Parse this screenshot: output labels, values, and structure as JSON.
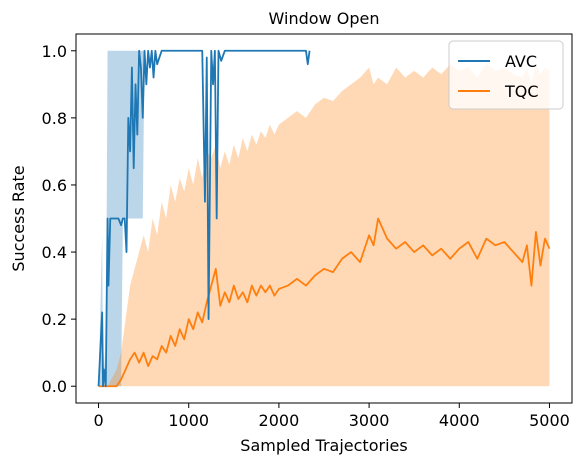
{
  "chart_data": {
    "type": "line",
    "title": "Window Open",
    "xlabel": "Sampled Trajectories",
    "ylabel": "Success Rate",
    "xlim": [
      -250,
      5250
    ],
    "ylim": [
      -0.05,
      1.05
    ],
    "xticks": [
      0,
      1000,
      2000,
      3000,
      4000,
      5000
    ],
    "xtick_labels": [
      "0",
      "1000",
      "2000",
      "3000",
      "4000",
      "5000"
    ],
    "yticks": [
      0.0,
      0.2,
      0.4,
      0.6,
      0.8,
      1.0
    ],
    "ytick_labels": [
      "0.0",
      "0.2",
      "0.4",
      "0.6",
      "0.8",
      "1.0"
    ],
    "grid": false,
    "legend_position": "top-right",
    "series": [
      {
        "name": "AVC",
        "color": "#1f77b4",
        "band_color": "#1f77b4",
        "x": [
          0,
          40,
          50,
          60,
          80,
          100,
          110,
          130,
          150,
          170,
          200,
          220,
          250,
          270,
          290,
          310,
          330,
          350,
          370,
          390,
          410,
          430,
          450,
          470,
          490,
          510,
          530,
          550,
          570,
          590,
          610,
          630,
          650,
          700,
          750,
          800,
          850,
          900,
          950,
          1000,
          1050,
          1100,
          1150,
          1180,
          1200,
          1220,
          1250,
          1270,
          1290,
          1310,
          1330,
          1360,
          1400,
          1500,
          1600,
          1700,
          1800,
          1900,
          2000,
          2100,
          2200,
          2300,
          2320,
          2340
        ],
        "y": [
          0.0,
          0.22,
          0.0,
          0.05,
          0.0,
          0.5,
          0.3,
          0.5,
          0.5,
          0.5,
          0.5,
          0.5,
          0.48,
          0.5,
          0.5,
          0.4,
          0.8,
          0.7,
          0.95,
          0.65,
          0.9,
          0.75,
          1.0,
          0.95,
          0.8,
          1.0,
          0.9,
          1.0,
          0.95,
          1.0,
          0.92,
          1.0,
          0.96,
          1.0,
          1.0,
          1.0,
          1.0,
          1.0,
          1.0,
          1.0,
          1.0,
          1.0,
          1.0,
          0.55,
          0.98,
          0.2,
          1.0,
          0.9,
          1.0,
          0.5,
          1.0,
          0.97,
          1.0,
          1.0,
          1.0,
          1.0,
          1.0,
          1.0,
          1.0,
          1.0,
          1.0,
          1.0,
          0.96,
          1.0
        ],
        "lower": [
          0.0,
          0.0,
          0.0,
          0.0,
          0.0,
          0.0,
          0.0,
          0.0,
          0.0,
          0.0,
          0.0,
          0.0,
          0.0,
          0.5,
          0.5,
          0.5,
          0.5,
          0.5,
          0.5,
          0.5,
          0.5,
          0.5,
          0.5,
          0.5,
          0.5,
          1.0,
          1.0,
          1.0,
          1.0,
          1.0,
          1.0,
          1.0,
          1.0,
          1.0,
          1.0,
          1.0,
          1.0,
          1.0,
          1.0,
          1.0,
          1.0,
          1.0,
          1.0,
          1.0,
          1.0,
          1.0,
          1.0,
          1.0,
          1.0,
          1.0,
          1.0,
          1.0,
          1.0,
          1.0,
          1.0,
          1.0,
          1.0,
          1.0,
          1.0,
          1.0,
          1.0,
          1.0,
          1.0,
          1.0
        ],
        "upper": [
          0.0,
          0.45,
          0.0,
          0.1,
          0.0,
          1.0,
          1.0,
          1.0,
          1.0,
          1.0,
          1.0,
          1.0,
          1.0,
          1.0,
          1.0,
          1.0,
          1.0,
          1.0,
          1.0,
          1.0,
          1.0,
          1.0,
          1.0,
          1.0,
          1.0,
          1.0,
          1.0,
          1.0,
          1.0,
          1.0,
          1.0,
          1.0,
          1.0,
          1.0,
          1.0,
          1.0,
          1.0,
          1.0,
          1.0,
          1.0,
          1.0,
          1.0,
          1.0,
          1.0,
          1.0,
          1.0,
          1.0,
          1.0,
          1.0,
          1.0,
          1.0,
          1.0,
          1.0,
          1.0,
          1.0,
          1.0,
          1.0,
          1.0,
          1.0,
          1.0,
          1.0,
          1.0,
          1.0,
          1.0
        ]
      },
      {
        "name": "TQC",
        "color": "#ff7f0e",
        "band_color": "#ff7f0e",
        "x": [
          0,
          100,
          200,
          250,
          300,
          350,
          400,
          450,
          500,
          550,
          600,
          650,
          700,
          750,
          800,
          850,
          900,
          950,
          1000,
          1050,
          1100,
          1150,
          1200,
          1250,
          1300,
          1350,
          1400,
          1450,
          1500,
          1550,
          1600,
          1650,
          1700,
          1750,
          1800,
          1850,
          1900,
          1950,
          2000,
          2100,
          2200,
          2300,
          2400,
          2500,
          2600,
          2700,
          2800,
          2900,
          3000,
          3050,
          3100,
          3200,
          3300,
          3400,
          3500,
          3600,
          3700,
          3800,
          3900,
          4000,
          4100,
          4200,
          4300,
          4400,
          4500,
          4600,
          4700,
          4750,
          4800,
          4850,
          4900,
          4950,
          5000
        ],
        "y": [
          0.0,
          0.0,
          0.0,
          0.02,
          0.05,
          0.08,
          0.1,
          0.07,
          0.1,
          0.06,
          0.09,
          0.08,
          0.12,
          0.1,
          0.15,
          0.12,
          0.17,
          0.14,
          0.2,
          0.17,
          0.22,
          0.19,
          0.25,
          0.3,
          0.35,
          0.24,
          0.28,
          0.25,
          0.3,
          0.26,
          0.28,
          0.25,
          0.3,
          0.27,
          0.3,
          0.28,
          0.3,
          0.27,
          0.29,
          0.3,
          0.32,
          0.3,
          0.33,
          0.35,
          0.34,
          0.38,
          0.4,
          0.37,
          0.45,
          0.42,
          0.5,
          0.44,
          0.41,
          0.43,
          0.4,
          0.42,
          0.39,
          0.41,
          0.38,
          0.41,
          0.43,
          0.38,
          0.44,
          0.42,
          0.43,
          0.4,
          0.37,
          0.42,
          0.3,
          0.46,
          0.36,
          0.44,
          0.41
        ],
        "lower": [
          0.0,
          0.0,
          0.0,
          0.0,
          0.0,
          0.0,
          0.0,
          0.0,
          0.0,
          0.0,
          0.0,
          0.0,
          0.0,
          0.0,
          0.0,
          0.0,
          0.0,
          0.0,
          0.0,
          0.0,
          0.0,
          0.0,
          0.0,
          0.0,
          0.0,
          0.0,
          0.0,
          0.0,
          0.0,
          0.0,
          0.0,
          0.0,
          0.0,
          0.0,
          0.0,
          0.0,
          0.0,
          0.0,
          0.0,
          0.0,
          0.0,
          0.0,
          0.0,
          0.0,
          0.0,
          0.0,
          0.0,
          0.0,
          0.0,
          0.0,
          0.0,
          0.0,
          0.0,
          0.0,
          0.0,
          0.0,
          0.0,
          0.0,
          0.0,
          0.0,
          0.0,
          0.0,
          0.0,
          0.0,
          0.0,
          0.0,
          0.0,
          0.0,
          0.0,
          0.0,
          0.0,
          0.0,
          0.0
        ],
        "upper": [
          0.0,
          0.0,
          0.05,
          0.1,
          0.2,
          0.3,
          0.35,
          0.4,
          0.45,
          0.4,
          0.5,
          0.45,
          0.55,
          0.5,
          0.6,
          0.55,
          0.62,
          0.58,
          0.65,
          0.6,
          0.68,
          0.62,
          0.7,
          0.68,
          0.72,
          0.65,
          0.7,
          0.66,
          0.72,
          0.68,
          0.74,
          0.7,
          0.75,
          0.72,
          0.76,
          0.74,
          0.78,
          0.75,
          0.78,
          0.8,
          0.82,
          0.8,
          0.84,
          0.86,
          0.85,
          0.88,
          0.9,
          0.92,
          0.95,
          0.9,
          0.92,
          0.9,
          0.95,
          0.92,
          0.94,
          0.92,
          0.95,
          0.93,
          0.96,
          0.94,
          0.95,
          0.92,
          0.96,
          0.94,
          0.95,
          0.93,
          0.92,
          0.95,
          0.9,
          0.96,
          0.93,
          0.95,
          0.94
        ]
      }
    ]
  }
}
